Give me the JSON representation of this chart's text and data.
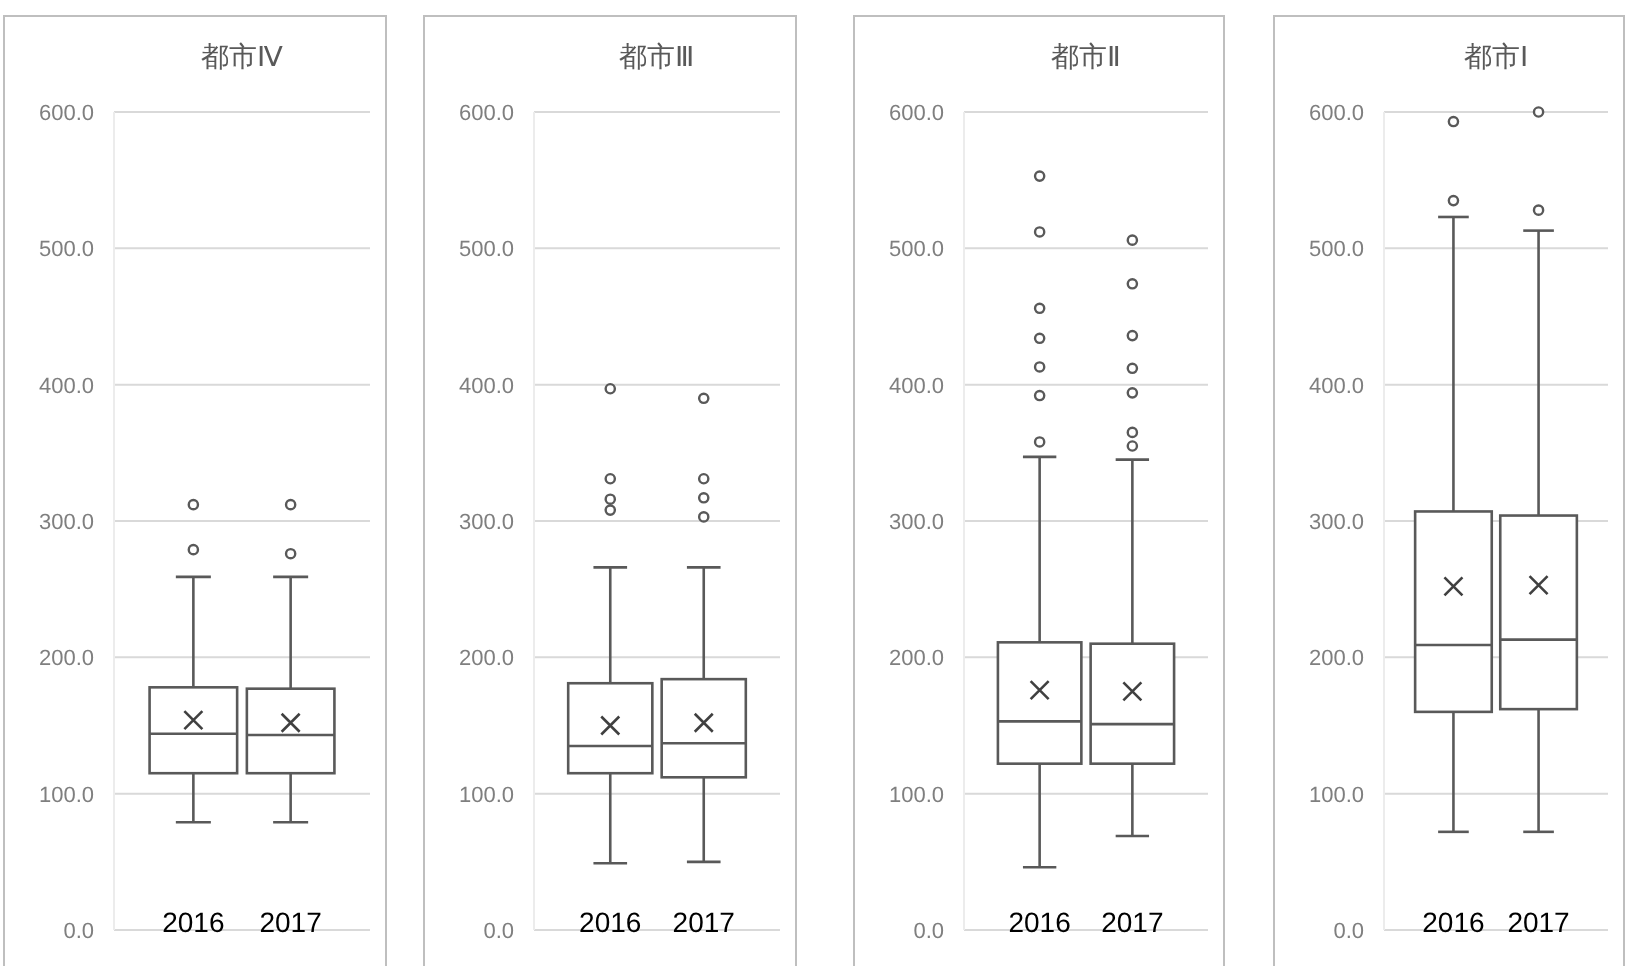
{
  "chart_data": [
    {
      "type": "box",
      "title": "都市Ⅳ",
      "categories": [
        "2016",
        "2017"
      ],
      "color": "#595959",
      "grid": "y",
      "ylim": [
        0,
        600
      ],
      "yticks": [
        {
          "value": 0,
          "label": "0.0"
        },
        {
          "value": 100,
          "label": "100.0"
        },
        {
          "value": 200,
          "label": "200.0"
        },
        {
          "value": 300,
          "label": "300.0"
        },
        {
          "value": 400,
          "label": "400.0"
        },
        {
          "value": 500,
          "label": "500.0"
        },
        {
          "value": 600,
          "label": "600.0"
        }
      ],
      "boxes": [
        {
          "low": 79,
          "q1": 115,
          "median": 144,
          "q3": 178,
          "high": 259,
          "mean": 154,
          "outliers": [
            312,
            279
          ]
        },
        {
          "low": 79,
          "q1": 115,
          "median": 143,
          "q3": 177,
          "high": 259,
          "mean": 152,
          "outliers": [
            312,
            276
          ]
        }
      ]
    },
    {
      "type": "box",
      "title": "都市Ⅲ",
      "categories": [
        "2016",
        "2017"
      ],
      "color": "#595959",
      "grid": "y",
      "ylim": [
        0,
        600
      ],
      "yticks": [
        {
          "value": 0,
          "label": "0.0"
        },
        {
          "value": 100,
          "label": "100.0"
        },
        {
          "value": 200,
          "label": "200.0"
        },
        {
          "value": 300,
          "label": "300.0"
        },
        {
          "value": 400,
          "label": "400.0"
        },
        {
          "value": 500,
          "label": "500.0"
        },
        {
          "value": 600,
          "label": "600.0"
        }
      ],
      "boxes": [
        {
          "low": 49,
          "q1": 115,
          "median": 135,
          "q3": 181,
          "high": 266,
          "mean": 150,
          "outliers": [
            397,
            331,
            316,
            308
          ]
        },
        {
          "low": 50,
          "q1": 112,
          "median": 137,
          "q3": 184,
          "high": 266,
          "mean": 152,
          "outliers": [
            390,
            331,
            317,
            303
          ]
        }
      ]
    },
    {
      "type": "box",
      "title": "都市Ⅱ",
      "categories": [
        "2016",
        "2017"
      ],
      "color": "#595959",
      "grid": "y",
      "ylim": [
        0,
        600
      ],
      "yticks": [
        {
          "value": 0,
          "label": "0.0"
        },
        {
          "value": 100,
          "label": "100.0"
        },
        {
          "value": 200,
          "label": "200.0"
        },
        {
          "value": 300,
          "label": "300.0"
        },
        {
          "value": 400,
          "label": "400.0"
        },
        {
          "value": 500,
          "label": "500.0"
        },
        {
          "value": 600,
          "label": "600.0"
        }
      ],
      "boxes": [
        {
          "low": 46,
          "q1": 122,
          "median": 153,
          "q3": 211,
          "high": 347,
          "mean": 176,
          "outliers": [
            553,
            512,
            456,
            434,
            413,
            392,
            358
          ]
        },
        {
          "low": 69,
          "q1": 122,
          "median": 151,
          "q3": 210,
          "high": 345,
          "mean": 175,
          "outliers": [
            506,
            474,
            436,
            412,
            394,
            365,
            355
          ]
        }
      ]
    },
    {
      "type": "box",
      "title": "都市Ⅰ",
      "categories": [
        "2016",
        "2017"
      ],
      "color": "#595959",
      "grid": "y",
      "ylim": [
        0,
        600
      ],
      "yticks": [
        {
          "value": 0,
          "label": "0.0"
        },
        {
          "value": 100,
          "label": "100.0"
        },
        {
          "value": 200,
          "label": "200.0"
        },
        {
          "value": 300,
          "label": "300.0"
        },
        {
          "value": 400,
          "label": "400.0"
        },
        {
          "value": 500,
          "label": "500.0"
        },
        {
          "value": 600,
          "label": "600.0"
        }
      ],
      "boxes": [
        {
          "low": 72,
          "q1": 160,
          "median": 209,
          "q3": 307,
          "high": 523,
          "mean": 252,
          "outliers": [
            535,
            593
          ]
        },
        {
          "low": 72,
          "q1": 162,
          "median": 213,
          "q3": 304,
          "high": 513,
          "mean": 253,
          "outliers": [
            528,
            600
          ]
        }
      ]
    }
  ]
}
